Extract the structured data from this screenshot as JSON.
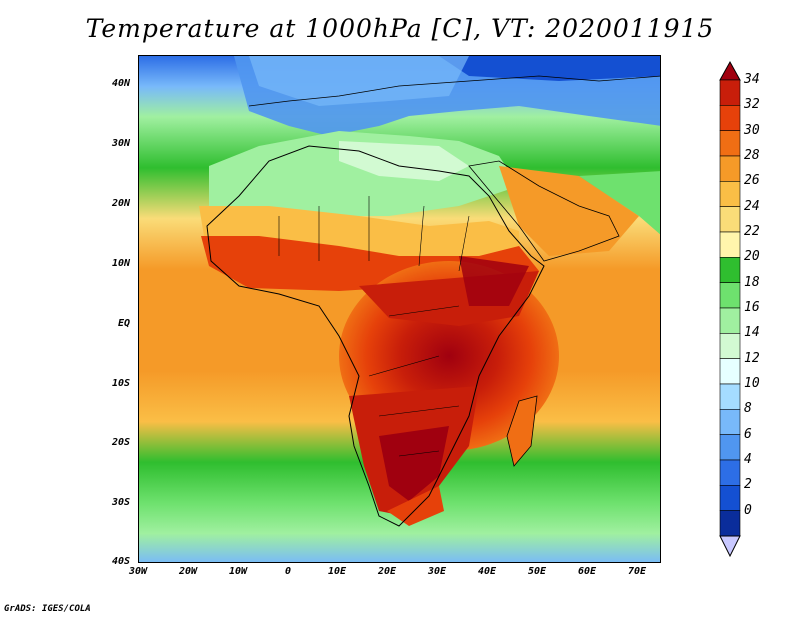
{
  "title": "Temperature at 1000hPa [C], VT: 2020011915",
  "footer": "GrADS: IGES/COLA",
  "y_axis": {
    "labels": [
      "40N",
      "30N",
      "20N",
      "10N",
      "EQ",
      "10S",
      "20S",
      "30S",
      "40S"
    ]
  },
  "x_axis": {
    "labels": [
      "30W",
      "20W",
      "10W",
      "0",
      "10E",
      "20E",
      "30E",
      "40E",
      "50E",
      "60E",
      "70E"
    ]
  },
  "colorbar": {
    "labels": [
      "34",
      "32",
      "30",
      "28",
      "26",
      "24",
      "22",
      "20",
      "18",
      "16",
      "14",
      "12",
      "10",
      "8",
      "6",
      "4",
      "2",
      "0"
    ],
    "colors": [
      "#a0000f",
      "#c81e0a",
      "#e6410a",
      "#f06e14",
      "#f59a28",
      "#fabe46",
      "#fadc78",
      "#fff5ac",
      "#2fbe2f",
      "#6ee16e",
      "#a0f0a0",
      "#d2fad2",
      "#e6ffff",
      "#a5dcff",
      "#78b9fa",
      "#5096f0",
      "#2d6ee6",
      "#1450d2",
      "#0a2d9b",
      "#0a1464"
    ]
  }
}
